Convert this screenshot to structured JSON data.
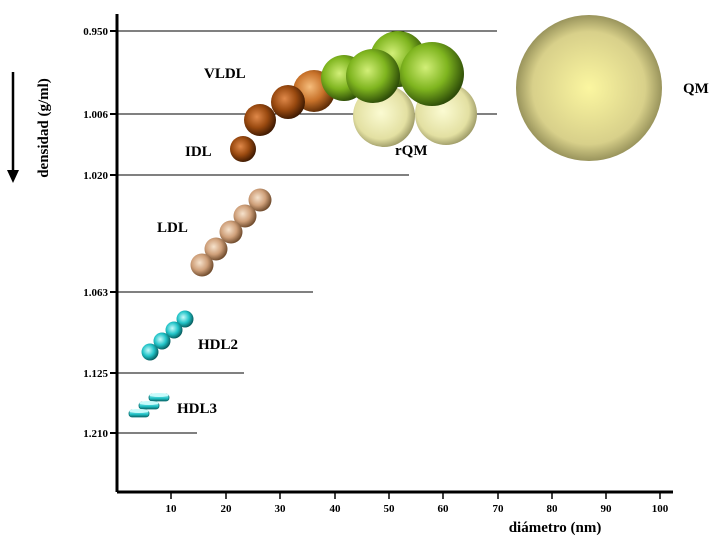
{
  "axes": {
    "x_title": "diámetro (nm)",
    "y_title": "densidad (g/ml)",
    "x_ticks": [
      "10",
      "20",
      "30",
      "40",
      "50",
      "60",
      "70",
      "80",
      "90",
      "100"
    ],
    "y_ticks": [
      "0.950",
      "1.006",
      "1.020",
      "1.063",
      "1.125",
      "1.210"
    ]
  },
  "labels": {
    "vldl": "VLDL",
    "idl": "IDL",
    "ldl": "LDL",
    "hdl2": "HDL2",
    "hdl3": "HDL3",
    "rqm": "rQM",
    "qm": "QM"
  },
  "colors": {
    "qm": "#d8d08a",
    "rqm": "#e8e6a8",
    "vldl_green": "#7fb51f",
    "vldl_orange": "#c8722a",
    "idl": "#9a4a10",
    "ldl": "#d8ae8a",
    "hdl": "#22c4c8",
    "line": "#000000"
  }
}
